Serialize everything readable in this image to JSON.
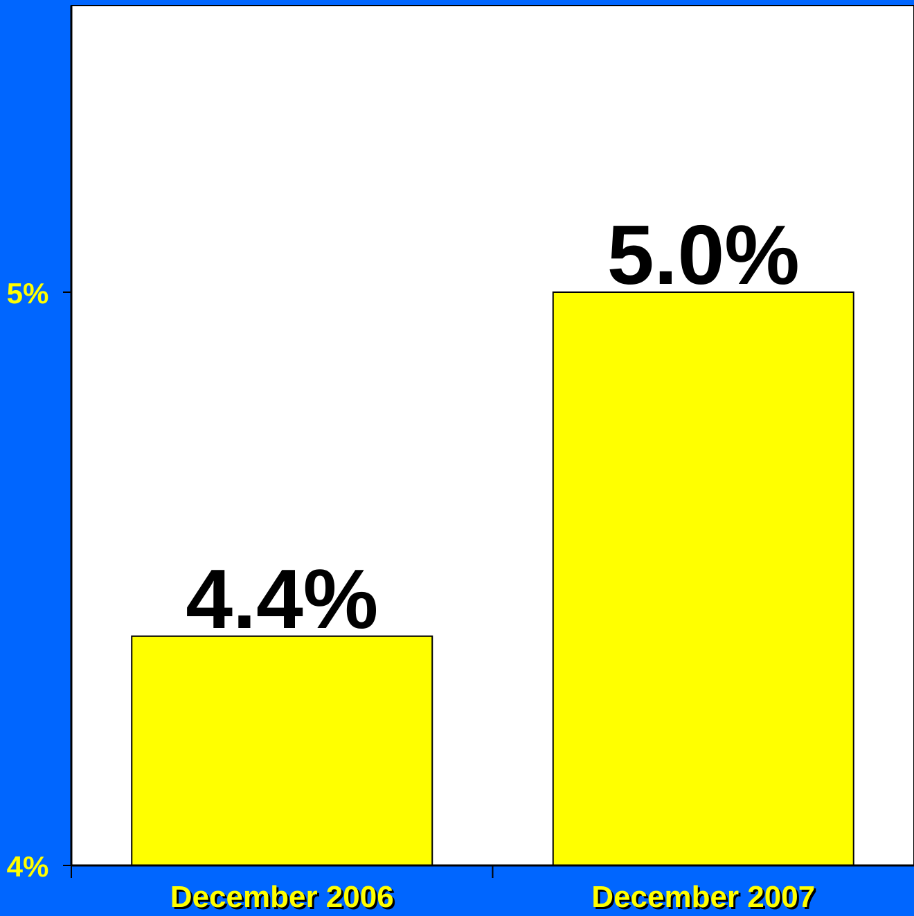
{
  "colors": {
    "background": "#0066ff",
    "plot_area": "#ffffff",
    "bar_fill": "#ffff00",
    "bar_stroke": "#000000",
    "tick_label": "#ffff00",
    "data_label": "#000000",
    "x_label_shadow": "#000000"
  },
  "chart_data": {
    "type": "bar",
    "title": "",
    "xlabel": "",
    "ylabel": "",
    "categories": [
      "December 2006",
      "December 2007"
    ],
    "values": [
      4.4,
      5.0
    ],
    "data_labels": [
      "4.4%",
      "5.0%"
    ],
    "ylim": [
      4,
      5.5
    ],
    "yticks": [
      {
        "value": 4,
        "label": "4%"
      },
      {
        "value": 5,
        "label": "5%"
      }
    ],
    "grid": false,
    "legend": "none"
  }
}
